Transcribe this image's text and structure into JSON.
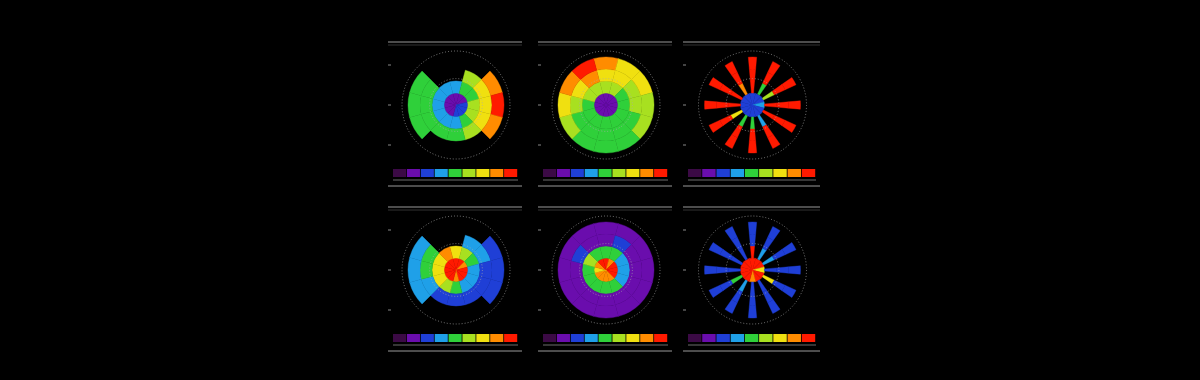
{
  "chart_data": [
    {
      "type": "polar_heatmap",
      "marker": "block",
      "colorbar_range": [
        0,
        9
      ],
      "colors": [
        "#3b0a45",
        "#6a0dad",
        "#1f3fd6",
        "#1fa0e8",
        "#2fd03a",
        "#a8e020",
        "#f0e010",
        "#ff8c00",
        "#ff1a00"
      ],
      "cells": [
        [
          1,
          1,
          1,
          2,
          2,
          2,
          2,
          1,
          1,
          1,
          1,
          1
        ],
        [
          3,
          4,
          4,
          5,
          5,
          4,
          3,
          3,
          3,
          3,
          3,
          3
        ],
        [
          null,
          5,
          6,
          6,
          6,
          5,
          4,
          4,
          4,
          4,
          4,
          null
        ],
        [
          null,
          null,
          7,
          8,
          7,
          null,
          null,
          null,
          4,
          4,
          4,
          null
        ]
      ]
    },
    {
      "type": "polar_heatmap",
      "marker": "block",
      "colorbar_range": [
        0,
        9
      ],
      "colors": [
        "#3b0a45",
        "#6a0dad",
        "#1f3fd6",
        "#1fa0e8",
        "#2fd03a",
        "#a8e020",
        "#f0e010",
        "#ff8c00",
        "#ff1a00"
      ],
      "cells": [
        [
          1,
          1,
          1,
          1,
          1,
          1,
          1,
          1,
          1,
          1,
          1,
          1
        ],
        [
          5,
          5,
          4,
          4,
          4,
          4,
          4,
          4,
          4,
          4,
          5,
          5
        ],
        [
          6,
          6,
          5,
          5,
          4,
          4,
          4,
          4,
          4,
          5,
          6,
          7
        ],
        [
          7,
          6,
          6,
          5,
          5,
          4,
          4,
          4,
          5,
          6,
          7,
          8
        ]
      ]
    },
    {
      "type": "polar_heatmap",
      "marker": "spoke",
      "colorbar_range": [
        0,
        9
      ],
      "colors": [
        "#3b0a45",
        "#6a0dad",
        "#1f3fd6",
        "#1fa0e8",
        "#2fd03a",
        "#a8e020",
        "#f0e010",
        "#ff8c00",
        "#ff1a00"
      ],
      "cells": [
        [
          2,
          2,
          2,
          3,
          2,
          2,
          2,
          2,
          2,
          2,
          2,
          2
        ],
        [
          8,
          4,
          5,
          8,
          8,
          3,
          4,
          4,
          6,
          8,
          8,
          7
        ],
        [
          8,
          8,
          8,
          8,
          8,
          8,
          8,
          8,
          8,
          8,
          8,
          8
        ],
        [
          8,
          8,
          8,
          8,
          8,
          8,
          8,
          8,
          8,
          8,
          8,
          8
        ]
      ]
    },
    {
      "type": "polar_heatmap",
      "marker": "block",
      "colorbar_range": [
        0,
        9
      ],
      "colors": [
        "#3b0a45",
        "#6a0dad",
        "#1f3fd6",
        "#1fa0e8",
        "#2fd03a",
        "#a8e020",
        "#f0e010",
        "#ff8c00",
        "#ff1a00"
      ],
      "cells": [
        [
          8,
          8,
          7,
          8,
          8,
          8,
          7,
          8,
          8,
          8,
          8,
          8
        ],
        [
          6,
          5,
          4,
          3,
          3,
          3,
          4,
          5,
          6,
          6,
          6,
          7
        ],
        [
          null,
          3,
          3,
          2,
          2,
          2,
          2,
          2,
          3,
          4,
          4,
          null
        ],
        [
          null,
          null,
          2,
          2,
          2,
          null,
          null,
          null,
          3,
          3,
          3,
          null
        ]
      ]
    },
    {
      "type": "polar_heatmap",
      "marker": "block",
      "colorbar_range": [
        0,
        9
      ],
      "colors": [
        "#3b0a45",
        "#6a0dad",
        "#1f3fd6",
        "#1fa0e8",
        "#2fd03a",
        "#a8e020",
        "#f0e010",
        "#ff8c00",
        "#ff1a00"
      ],
      "cells": [
        [
          8,
          7,
          8,
          8,
          8,
          7,
          7,
          7,
          7,
          6,
          7,
          8
        ],
        [
          4,
          4,
          3,
          3,
          3,
          4,
          4,
          4,
          4,
          4,
          5,
          4
        ],
        [
          1,
          2,
          1,
          1,
          1,
          1,
          1,
          1,
          1,
          1,
          2,
          1
        ],
        [
          1,
          1,
          1,
          1,
          1,
          1,
          1,
          1,
          1,
          1,
          1,
          1
        ]
      ]
    },
    {
      "type": "polar_heatmap",
      "marker": "spoke",
      "colorbar_range": [
        0,
        9
      ],
      "colors": [
        "#3b0a45",
        "#6a0dad",
        "#1f3fd6",
        "#1fa0e8",
        "#2fd03a",
        "#a8e020",
        "#f0e010",
        "#ff8c00",
        "#ff1a00"
      ],
      "cells": [
        [
          8,
          8,
          8,
          6,
          8,
          8,
          7,
          8,
          8,
          8,
          8,
          8
        ],
        [
          8,
          3,
          3,
          2,
          6,
          2,
          2,
          3,
          4,
          2,
          2,
          2
        ],
        [
          2,
          2,
          2,
          2,
          2,
          2,
          2,
          2,
          2,
          2,
          2,
          2
        ],
        [
          2,
          2,
          2,
          2,
          2,
          2,
          2,
          2,
          2,
          2,
          2,
          2
        ]
      ]
    }
  ]
}
